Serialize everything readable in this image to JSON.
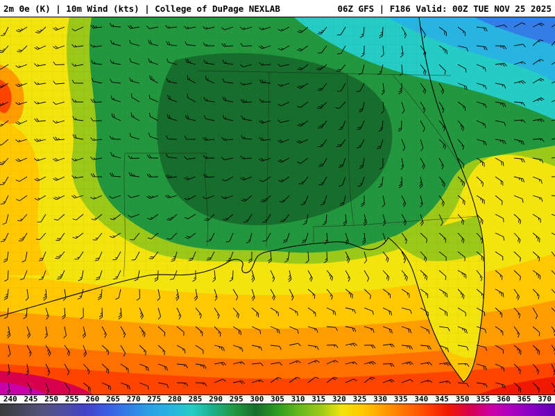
{
  "header": {
    "left_title": "2m Θe (K) | 10m Wind (kts) | College of DuPage NEXLAB",
    "right_title": "06Z GFS | F186 Valid: 00Z TUE NOV 25 2025"
  },
  "colorbar": {
    "values": [
      240,
      245,
      250,
      255,
      260,
      265,
      270,
      275,
      280,
      285,
      290,
      295,
      300,
      305,
      310,
      315,
      320,
      325,
      330,
      335,
      340,
      345,
      350,
      355,
      360,
      365,
      370
    ],
    "colors": [
      "#3a3a3a",
      "#46465e",
      "#52527e",
      "#4e4ea2",
      "#4242c6",
      "#3a5ee2",
      "#327ee6",
      "#2aa2e4",
      "#28b4e0",
      "#24ccc4",
      "#1cb088",
      "#23973d",
      "#176e2c",
      "#2f9b20",
      "#66b81c",
      "#9cc818",
      "#f2e40c",
      "#ffc800",
      "#ff9c00",
      "#ff7000",
      "#ff4400",
      "#f01800",
      "#d8004c",
      "#cc00a8",
      "#a800c0",
      "#8400c4",
      "#6000b8"
    ]
  },
  "map": {
    "palette": {
      "base_yellow": "#f2e40c",
      "gold": "#ffc800",
      "orange": "#ff9c00",
      "deep_orange": "#ff7000",
      "red_orange": "#ff4400",
      "red": "#f01800",
      "crimson": "#d8004c",
      "magenta": "#cc00a8",
      "yellow_green": "#9cc818",
      "green": "#23973d",
      "dark_green": "#176e2c",
      "teal": "#24ccc4",
      "cyan": "#28b4e0",
      "blue": "#327ee6",
      "outline": "#000000",
      "border": "#1a1a1a",
      "barb": "#000000"
    },
    "wind_barbs": {
      "color": "#000000",
      "spacing": 27
    }
  }
}
